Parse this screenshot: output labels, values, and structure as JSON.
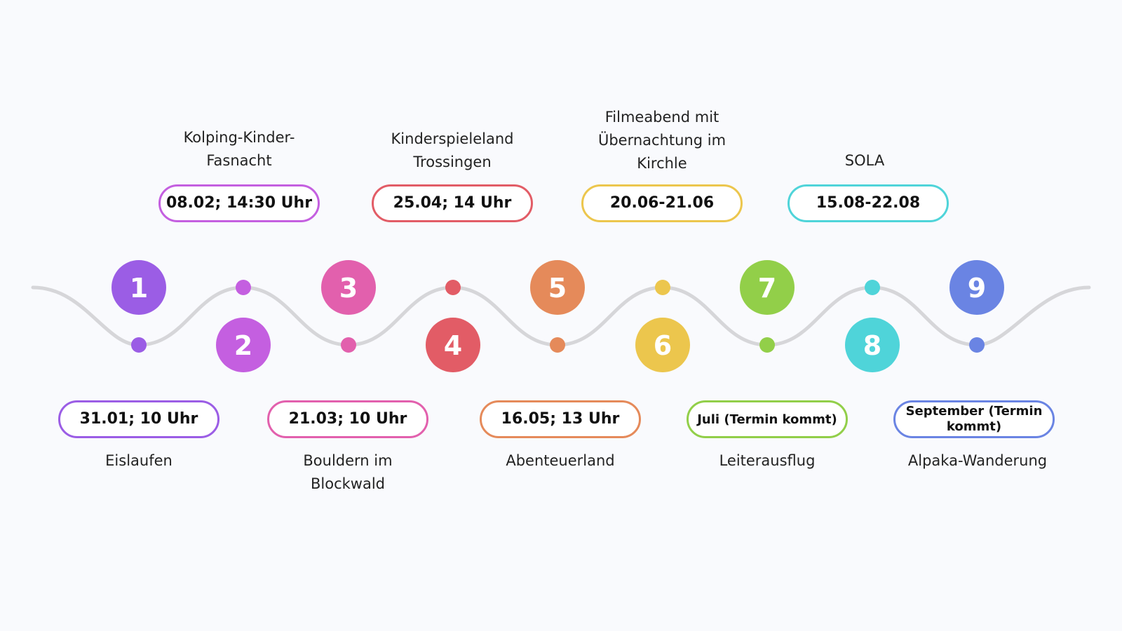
{
  "events": [
    {
      "number": "1",
      "date": "31.01; 10 Uhr",
      "title": "Eislaufen",
      "color": "#9b5de5"
    },
    {
      "number": "2",
      "date": "08.02; 14:30 Uhr",
      "title": "Kolping-Kinder-Fasnacht",
      "color": "#c45fe0"
    },
    {
      "number": "3",
      "date": "21.03; 10 Uhr",
      "title": "Bouldern im Blockwald",
      "color": "#e260ad"
    },
    {
      "number": "4",
      "date": "25.04; 14 Uhr",
      "title": "Kinderspieleland Trossingen",
      "color": "#e25c66"
    },
    {
      "number": "5",
      "date": "16.05; 13 Uhr",
      "title": "Abenteuerland",
      "color": "#e58a5a"
    },
    {
      "number": "6",
      "date": "20.06-21.06",
      "title": "Filmeabend mit Übernachtung im Kirchle",
      "color": "#ecc64d"
    },
    {
      "number": "7",
      "date": "Juli (Termin kommt)",
      "title": "Leiterausflug",
      "color": "#92cf49"
    },
    {
      "number": "8",
      "date": "15.08-22.08",
      "title": "SOLA",
      "color": "#4fd4d9"
    },
    {
      "number": "9",
      "date": "September (Termin kommt)",
      "title": "Alpaka-Wanderung",
      "color": "#6a84e3"
    }
  ],
  "wave_color": "#d6d6d9"
}
